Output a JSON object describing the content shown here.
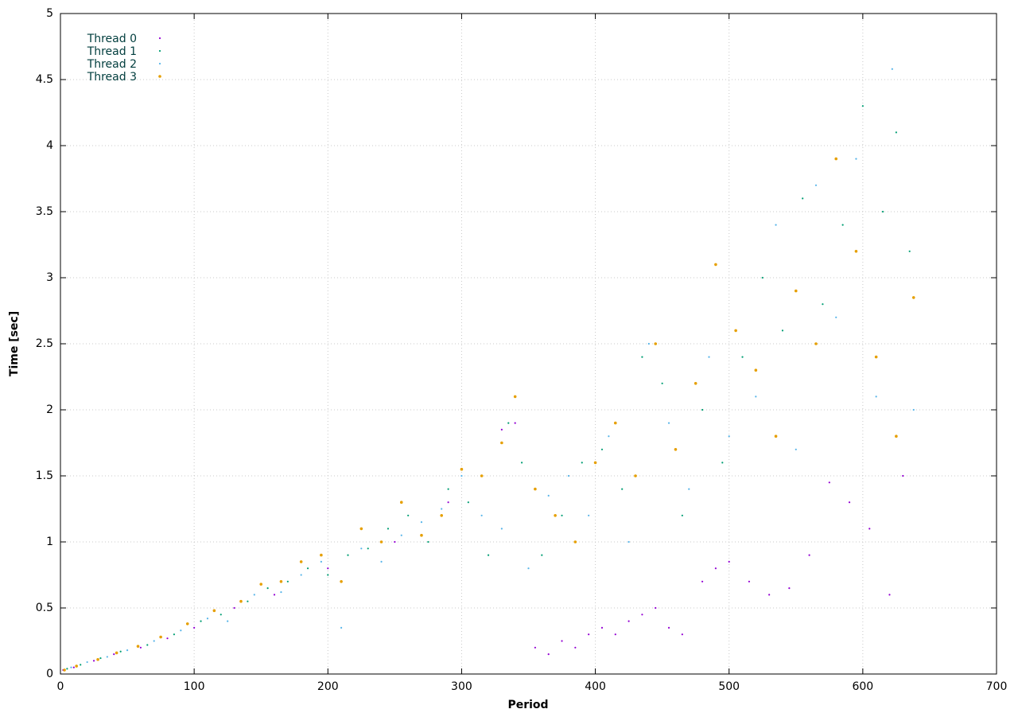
{
  "chart_data": {
    "type": "scatter",
    "x_label": "Period",
    "y_label": "Time [sec]",
    "xlim": [
      0,
      700
    ],
    "ylim": [
      0,
      5
    ],
    "xticks": [
      0,
      100,
      200,
      300,
      400,
      500,
      600,
      700
    ],
    "yticks": [
      0,
      0.5,
      1,
      1.5,
      2,
      2.5,
      3,
      3.5,
      4,
      4.5,
      5
    ],
    "grid": true,
    "legend": "top-left",
    "series": [
      {
        "name": "Thread 0",
        "color": "#9400d3",
        "x": [
          2,
          10,
          25,
          40,
          60,
          80,
          100,
          130,
          160,
          200,
          250,
          290,
          330,
          340,
          355,
          365,
          375,
          385,
          395,
          405,
          415,
          425,
          435,
          445,
          455,
          465,
          480,
          490,
          500,
          515,
          530,
          545,
          560,
          575,
          590,
          605,
          620,
          630
        ],
        "values": [
          0.03,
          0.05,
          0.1,
          0.15,
          0.2,
          0.27,
          0.35,
          0.5,
          0.6,
          0.8,
          1.0,
          1.3,
          1.85,
          1.9,
          0.2,
          0.15,
          0.25,
          0.2,
          0.3,
          0.35,
          0.3,
          0.4,
          0.45,
          0.5,
          0.35,
          0.3,
          0.7,
          0.8,
          0.85,
          0.7,
          0.6,
          0.65,
          0.9,
          1.45,
          1.3,
          1.1,
          0.6,
          1.5
        ]
      },
      {
        "name": "Thread 1",
        "color": "#009e73",
        "x": [
          5,
          15,
          30,
          45,
          65,
          85,
          105,
          120,
          140,
          155,
          170,
          185,
          200,
          215,
          230,
          245,
          260,
          275,
          290,
          305,
          320,
          335,
          345,
          360,
          375,
          390,
          405,
          420,
          435,
          450,
          465,
          480,
          495,
          510,
          525,
          540,
          555,
          570,
          585,
          600,
          615,
          625,
          635
        ],
        "values": [
          0.04,
          0.07,
          0.12,
          0.17,
          0.22,
          0.3,
          0.4,
          0.45,
          0.55,
          0.65,
          0.7,
          0.8,
          0.75,
          0.9,
          0.95,
          1.1,
          1.2,
          1.0,
          1.4,
          1.3,
          0.9,
          1.9,
          1.6,
          0.9,
          1.2,
          1.6,
          1.7,
          1.4,
          2.4,
          2.2,
          1.2,
          2.0,
          1.6,
          2.4,
          3.0,
          2.6,
          3.6,
          2.8,
          3.4,
          4.3,
          3.5,
          4.1,
          3.2
        ]
      },
      {
        "name": "Thread 2",
        "color": "#56b4e9",
        "x": [
          8,
          20,
          35,
          50,
          70,
          90,
          110,
          125,
          145,
          165,
          180,
          195,
          210,
          225,
          240,
          255,
          270,
          285,
          300,
          315,
          330,
          350,
          365,
          380,
          395,
          410,
          425,
          440,
          455,
          470,
          485,
          500,
          520,
          535,
          550,
          565,
          580,
          595,
          610,
          622,
          638
        ],
        "values": [
          0.05,
          0.09,
          0.13,
          0.18,
          0.25,
          0.33,
          0.42,
          0.4,
          0.6,
          0.62,
          0.75,
          0.85,
          0.35,
          0.95,
          0.85,
          1.05,
          1.15,
          1.25,
          1.5,
          1.2,
          1.1,
          0.8,
          1.35,
          1.5,
          1.2,
          1.8,
          1.0,
          2.5,
          1.9,
          1.4,
          2.4,
          1.8,
          2.1,
          3.4,
          1.7,
          3.7,
          2.7,
          3.9,
          2.1,
          4.58,
          2.0
        ]
      },
      {
        "name": "Thread 3",
        "color": "#e69f00",
        "x": [
          3,
          12,
          28,
          42,
          58,
          75,
          95,
          115,
          135,
          150,
          165,
          180,
          195,
          210,
          225,
          240,
          255,
          270,
          285,
          300,
          315,
          330,
          340,
          355,
          370,
          385,
          400,
          415,
          430,
          445,
          460,
          475,
          490,
          505,
          520,
          535,
          550,
          565,
          580,
          595,
          610,
          625,
          638
        ],
        "values": [
          0.03,
          0.06,
          0.11,
          0.16,
          0.21,
          0.28,
          0.38,
          0.48,
          0.55,
          0.68,
          0.7,
          0.85,
          0.9,
          0.7,
          1.1,
          1.0,
          1.3,
          1.05,
          1.2,
          1.55,
          1.5,
          1.75,
          2.1,
          1.4,
          1.2,
          1.0,
          1.6,
          1.9,
          1.5,
          2.5,
          1.7,
          2.2,
          3.1,
          2.6,
          2.3,
          1.8,
          2.9,
          2.5,
          3.9,
          3.2,
          2.4,
          1.8,
          2.85
        ]
      }
    ]
  }
}
